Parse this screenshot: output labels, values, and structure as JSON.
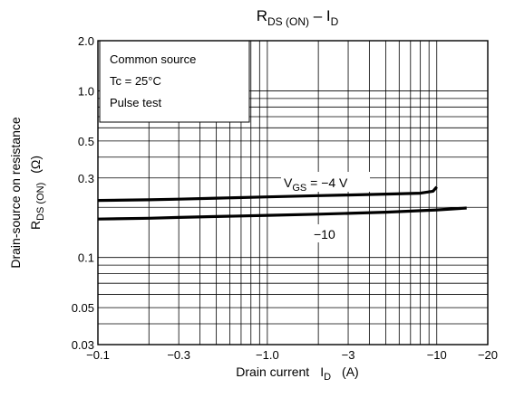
{
  "chart_data": {
    "type": "line",
    "title": {
      "main": "R",
      "main_sub": "DS (ON)",
      "sep": " – ",
      "main2": "I",
      "main2_sub": "D"
    },
    "xlabel": {
      "text": "Drain current",
      "sym": "I",
      "sym_sub": "D",
      "unit": "(A)"
    },
    "ylabel": {
      "line1": "Drain-source on resistance",
      "sym": "R",
      "sym_sub": "DS (ON)",
      "unit": "(Ω)"
    },
    "x_scale": "log",
    "y_scale": "log",
    "xlim": [
      -0.1,
      -20
    ],
    "ylim": [
      0.03,
      2.0
    ],
    "grid": true,
    "x_ticks": [
      {
        "value": 0.1,
        "label": "−0.1"
      },
      {
        "value": 0.3,
        "label": "−0.3"
      },
      {
        "value": 1,
        "label": "−1.0"
      },
      {
        "value": 3,
        "label": "−3"
      },
      {
        "value": 10,
        "label": "−10"
      },
      {
        "value": 20,
        "label": "−20"
      }
    ],
    "y_ticks": [
      {
        "value": 0.03,
        "label": "0.03"
      },
      {
        "value": 0.05,
        "label": "0.05"
      },
      {
        "value": 0.1,
        "label": "0.1"
      },
      {
        "value": 0.3,
        "label": "0.3"
      },
      {
        "value": 0.5,
        "label": "0.5"
      },
      {
        "value": 1.0,
        "label": "1.0"
      },
      {
        "value": 2.0,
        "label": "2.0"
      }
    ],
    "conditions": [
      "Common source",
      "Tc = 25°C",
      "Pulse test"
    ],
    "series": [
      {
        "name": "VGS = −4 V",
        "x": [
          -0.1,
          -0.2,
          -0.3,
          -0.5,
          -1,
          -2,
          -3,
          -5,
          -8,
          -9.5,
          -10
        ],
        "y": [
          0.22,
          0.222,
          0.224,
          0.227,
          0.231,
          0.235,
          0.237,
          0.24,
          0.243,
          0.25,
          0.265
        ]
      },
      {
        "name": "−10",
        "x": [
          -0.1,
          -0.2,
          -0.3,
          -0.5,
          -1,
          -2,
          -3,
          -5,
          -10,
          -15
        ],
        "y": [
          0.17,
          0.172,
          0.174,
          0.176,
          0.179,
          0.182,
          0.184,
          0.187,
          0.193,
          0.198
        ]
      }
    ],
    "series_labels": [
      {
        "main": "V",
        "sub": "GS",
        "rest": " = −4 V"
      },
      {
        "main": "−10",
        "sub": "",
        "rest": ""
      }
    ]
  }
}
